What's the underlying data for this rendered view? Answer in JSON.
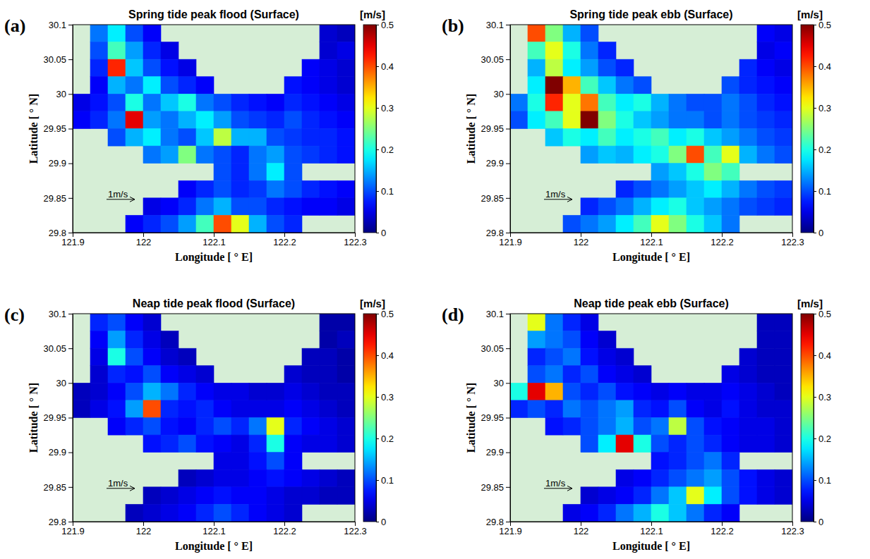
{
  "chart_data": [
    {
      "type": "heatmap",
      "label": "(a)",
      "title": "Spring tide peak flood (Surface)",
      "x_label": "Longitude [ ° E]",
      "y_label": "Latitude [ ° N]",
      "xlim": [
        121.9,
        122.3
      ],
      "ylim": [
        29.8,
        30.1
      ],
      "xticks": [
        121.9,
        122,
        122.1,
        122.2,
        122.3
      ],
      "yticks": [
        29.8,
        29.85,
        29.9,
        29.95,
        30,
        30.05,
        30.1
      ],
      "x_bins": [
        121.9,
        121.925,
        121.95,
        121.975,
        122,
        122.025,
        122.05,
        122.075,
        122.1,
        122.125,
        122.15,
        122.175,
        122.2,
        122.225,
        122.25,
        122.275,
        122.3
      ],
      "y_bins": [
        30.1,
        30.075,
        30.05,
        30.025,
        30,
        29.975,
        29.95,
        29.925,
        29.9,
        29.875,
        29.85,
        29.825,
        29.8
      ],
      "cells": [
        [
          null,
          0.12,
          0.18,
          0.1,
          0.06,
          null,
          null,
          null,
          null,
          null,
          null,
          null,
          null,
          null,
          0.04,
          0.03
        ],
        [
          null,
          0.1,
          0.22,
          0.14,
          0.08,
          0.05,
          null,
          null,
          null,
          null,
          null,
          null,
          null,
          null,
          0.04,
          0.05
        ],
        [
          null,
          0.08,
          0.42,
          0.16,
          0.1,
          0.07,
          0.05,
          null,
          null,
          null,
          null,
          null,
          null,
          0.06,
          0.05,
          0.04
        ],
        [
          null,
          0.06,
          0.15,
          0.12,
          0.18,
          0.1,
          0.08,
          0.06,
          null,
          null,
          null,
          null,
          0.07,
          0.06,
          0.05,
          0.04
        ],
        [
          0.05,
          0.07,
          0.1,
          0.2,
          0.12,
          0.16,
          0.2,
          0.12,
          0.1,
          0.08,
          0.07,
          0.06,
          0.08,
          0.07,
          0.06,
          0.05
        ],
        [
          0.06,
          0.08,
          0.12,
          0.45,
          0.14,
          0.12,
          0.15,
          0.18,
          0.14,
          0.1,
          0.09,
          0.08,
          0.1,
          0.08,
          0.07,
          0.06
        ],
        [
          null,
          null,
          0.1,
          0.15,
          0.18,
          0.12,
          0.1,
          0.16,
          0.28,
          0.15,
          0.15,
          0.1,
          0.09,
          0.08,
          0.08,
          0.07
        ],
        [
          null,
          null,
          null,
          null,
          0.12,
          0.14,
          0.25,
          0.12,
          0.1,
          0.08,
          0.12,
          0.14,
          0.1,
          0.09,
          0.08,
          0.07
        ],
        [
          null,
          null,
          null,
          null,
          null,
          null,
          null,
          null,
          0.1,
          0.08,
          0.12,
          0.18,
          0.1,
          null,
          null,
          null
        ],
        [
          null,
          null,
          null,
          null,
          null,
          null,
          0.06,
          0.08,
          0.1,
          0.08,
          0.09,
          0.12,
          0.1,
          0.08,
          0.07,
          0.06
        ],
        [
          null,
          null,
          null,
          null,
          0.05,
          0.06,
          0.08,
          0.12,
          0.15,
          0.1,
          0.1,
          0.08,
          0.07,
          0.06,
          0.06,
          0.05
        ],
        [
          null,
          null,
          null,
          0.06,
          0.08,
          0.1,
          0.14,
          0.22,
          0.4,
          0.3,
          0.15,
          0.1,
          0.08,
          null,
          null,
          null
        ]
      ],
      "colorbar": {
        "label": "[m/s]",
        "range": [
          0,
          0.5
        ],
        "ticks": [
          0,
          0.1,
          0.2,
          0.3,
          0.4,
          0.5
        ]
      },
      "scale_label": "1m/s"
    },
    {
      "type": "heatmap",
      "label": "(b)",
      "title": "Spring tide peak ebb (Surface)",
      "x_label": "Longitude [ ° E]",
      "y_label": "Latitude [ ° N]",
      "xlim": [
        121.9,
        122.3
      ],
      "ylim": [
        29.8,
        30.1
      ],
      "xticks": [
        121.9,
        122,
        122.1,
        122.2,
        122.3
      ],
      "yticks": [
        29.8,
        29.85,
        29.9,
        29.95,
        30,
        30.05,
        30.1
      ],
      "x_bins": [
        121.9,
        121.925,
        121.95,
        121.975,
        122,
        122.025,
        122.05,
        122.075,
        122.1,
        122.125,
        122.15,
        122.175,
        122.2,
        122.225,
        122.25,
        122.275,
        122.3
      ],
      "y_bins": [
        30.1,
        30.075,
        30.05,
        30.025,
        30,
        29.975,
        29.95,
        29.925,
        29.9,
        29.875,
        29.85,
        29.825,
        29.8
      ],
      "cells": [
        [
          null,
          0.4,
          0.25,
          0.15,
          0.1,
          null,
          null,
          null,
          null,
          null,
          null,
          null,
          null,
          null,
          0.06,
          0.05
        ],
        [
          null,
          0.22,
          0.3,
          0.2,
          0.12,
          0.08,
          null,
          null,
          null,
          null,
          null,
          null,
          null,
          null,
          0.05,
          0.06
        ],
        [
          null,
          0.15,
          0.28,
          0.18,
          0.14,
          0.1,
          0.08,
          null,
          null,
          null,
          null,
          null,
          null,
          0.08,
          0.06,
          0.05
        ],
        [
          null,
          0.18,
          0.5,
          0.35,
          0.22,
          0.16,
          0.12,
          0.1,
          null,
          null,
          null,
          null,
          0.1,
          0.08,
          0.07,
          0.06
        ],
        [
          0.12,
          0.2,
          0.42,
          0.3,
          0.38,
          0.22,
          0.18,
          0.2,
          0.15,
          0.12,
          0.1,
          0.1,
          0.12,
          0.1,
          0.08,
          0.07
        ],
        [
          0.1,
          0.18,
          0.22,
          0.3,
          0.5,
          0.25,
          0.2,
          0.16,
          0.14,
          0.12,
          0.12,
          0.1,
          0.12,
          0.1,
          0.09,
          0.08
        ],
        [
          null,
          null,
          0.16,
          0.2,
          0.18,
          0.22,
          0.18,
          0.2,
          0.22,
          0.18,
          0.2,
          0.16,
          0.14,
          0.12,
          0.1,
          0.09
        ],
        [
          null,
          null,
          null,
          null,
          0.14,
          0.16,
          0.15,
          0.18,
          0.2,
          0.25,
          0.4,
          0.22,
          0.3,
          0.15,
          0.12,
          0.1
        ],
        [
          null,
          null,
          null,
          null,
          null,
          null,
          null,
          null,
          0.14,
          0.16,
          0.2,
          0.25,
          0.22,
          null,
          null,
          null
        ],
        [
          null,
          null,
          null,
          null,
          null,
          null,
          0.08,
          0.1,
          0.12,
          0.14,
          0.16,
          0.18,
          0.15,
          0.12,
          0.1,
          0.09
        ],
        [
          null,
          null,
          null,
          null,
          0.08,
          0.1,
          0.12,
          0.15,
          0.18,
          0.2,
          0.16,
          0.14,
          0.12,
          0.1,
          0.09,
          0.08
        ],
        [
          null,
          null,
          null,
          0.1,
          0.12,
          0.14,
          0.18,
          0.22,
          0.3,
          0.25,
          0.2,
          0.16,
          0.12,
          null,
          null,
          null
        ]
      ],
      "colorbar": {
        "label": "[m/s]",
        "range": [
          0,
          0.5
        ],
        "ticks": [
          0,
          0.1,
          0.2,
          0.3,
          0.4,
          0.5
        ]
      },
      "scale_label": "1m/s"
    },
    {
      "type": "heatmap",
      "label": "(c)",
      "title": "Neap tide peak flood (Surface)",
      "x_label": "Longitude [ ° E]",
      "y_label": "Latitude [ ° N]",
      "xlim": [
        121.9,
        122.3
      ],
      "ylim": [
        29.8,
        30.1
      ],
      "xticks": [
        121.9,
        122,
        122.1,
        122.2,
        122.3
      ],
      "yticks": [
        29.8,
        29.85,
        29.9,
        29.95,
        30,
        30.05,
        30.1
      ],
      "x_bins": [
        121.9,
        121.925,
        121.95,
        121.975,
        122,
        122.025,
        122.05,
        122.075,
        122.1,
        122.125,
        122.15,
        122.175,
        122.2,
        122.225,
        122.25,
        122.275,
        122.3
      ],
      "y_bins": [
        30.1,
        30.075,
        30.05,
        30.025,
        30,
        29.975,
        29.95,
        29.925,
        29.9,
        29.875,
        29.85,
        29.825,
        29.8
      ],
      "cells": [
        [
          null,
          0.08,
          0.1,
          0.06,
          0.04,
          null,
          null,
          null,
          null,
          null,
          null,
          null,
          null,
          null,
          0.02,
          0.02
        ],
        [
          null,
          0.06,
          0.14,
          0.08,
          0.05,
          0.03,
          null,
          null,
          null,
          null,
          null,
          null,
          null,
          null,
          0.02,
          0.03
        ],
        [
          null,
          0.05,
          0.2,
          0.1,
          0.06,
          0.04,
          0.03,
          null,
          null,
          null,
          null,
          null,
          null,
          0.03,
          0.03,
          0.02
        ],
        [
          null,
          0.04,
          0.08,
          0.07,
          0.1,
          0.06,
          0.05,
          0.04,
          null,
          null,
          null,
          null,
          0.04,
          0.03,
          0.03,
          0.02
        ],
        [
          0.03,
          0.04,
          0.06,
          0.1,
          0.15,
          0.12,
          0.08,
          0.06,
          0.05,
          0.05,
          0.04,
          0.04,
          0.05,
          0.04,
          0.03,
          0.03
        ],
        [
          0.03,
          0.05,
          0.07,
          0.14,
          0.4,
          0.08,
          0.07,
          0.08,
          0.06,
          0.05,
          0.05,
          0.05,
          0.06,
          0.05,
          0.04,
          0.03
        ],
        [
          null,
          null,
          0.06,
          0.08,
          0.1,
          0.07,
          0.06,
          0.08,
          0.1,
          0.08,
          0.12,
          0.3,
          0.08,
          0.06,
          0.05,
          0.04
        ],
        [
          null,
          null,
          null,
          null,
          0.07,
          0.08,
          0.1,
          0.07,
          0.06,
          0.05,
          0.08,
          0.2,
          0.06,
          0.05,
          0.05,
          0.04
        ],
        [
          null,
          null,
          null,
          null,
          null,
          null,
          null,
          null,
          0.05,
          0.05,
          0.07,
          0.1,
          0.06,
          null,
          null,
          null
        ],
        [
          null,
          null,
          null,
          null,
          null,
          null,
          0.03,
          0.04,
          0.05,
          0.05,
          0.06,
          0.07,
          0.06,
          0.05,
          0.04,
          0.03
        ],
        [
          null,
          null,
          null,
          null,
          0.03,
          0.04,
          0.05,
          0.06,
          0.07,
          0.06,
          0.06,
          0.05,
          0.04,
          0.04,
          0.03,
          0.03
        ],
        [
          null,
          null,
          null,
          0.03,
          0.04,
          0.05,
          0.06,
          0.08,
          0.1,
          0.08,
          0.06,
          0.05,
          0.04,
          null,
          null,
          null
        ]
      ],
      "colorbar": {
        "label": "[m/s]",
        "range": [
          0,
          0.5
        ],
        "ticks": [
          0,
          0.1,
          0.2,
          0.3,
          0.4,
          0.5
        ]
      },
      "scale_label": "1m/s"
    },
    {
      "type": "heatmap",
      "label": "(d)",
      "title": "Neap tide peak ebb (Surface)",
      "x_label": "Longitude [ ° E]",
      "y_label": "Latitude [ ° N]",
      "xlim": [
        121.9,
        122.3
      ],
      "ylim": [
        29.8,
        30.1
      ],
      "xticks": [
        121.9,
        122,
        122.1,
        122.2,
        122.3
      ],
      "yticks": [
        29.8,
        29.85,
        29.9,
        29.95,
        30,
        30.05,
        30.1
      ],
      "x_bins": [
        121.9,
        121.925,
        121.95,
        121.975,
        122,
        122.025,
        122.05,
        122.075,
        122.1,
        122.125,
        122.15,
        122.175,
        122.2,
        122.225,
        122.25,
        122.275,
        122.3
      ],
      "y_bins": [
        30.1,
        30.075,
        30.05,
        30.025,
        30,
        29.975,
        29.95,
        29.925,
        29.9,
        29.875,
        29.85,
        29.825,
        29.8
      ],
      "cells": [
        [
          null,
          0.3,
          0.12,
          0.08,
          0.05,
          null,
          null,
          null,
          null,
          null,
          null,
          null,
          null,
          null,
          0.03,
          0.03
        ],
        [
          null,
          0.14,
          0.12,
          0.1,
          0.06,
          0.04,
          null,
          null,
          null,
          null,
          null,
          null,
          null,
          null,
          0.03,
          0.03
        ],
        [
          null,
          0.08,
          0.1,
          0.12,
          0.07,
          0.05,
          0.04,
          null,
          null,
          null,
          null,
          null,
          null,
          0.04,
          0.03,
          0.03
        ],
        [
          null,
          0.1,
          0.12,
          0.08,
          0.1,
          0.06,
          0.05,
          0.04,
          null,
          null,
          null,
          null,
          0.05,
          0.04,
          0.03,
          0.03
        ],
        [
          0.2,
          0.45,
          0.35,
          0.1,
          0.08,
          0.1,
          0.07,
          0.06,
          0.05,
          0.06,
          0.05,
          0.05,
          0.06,
          0.05,
          0.04,
          0.03
        ],
        [
          0.08,
          0.1,
          0.08,
          0.12,
          0.1,
          0.12,
          0.14,
          0.08,
          0.07,
          0.1,
          0.06,
          0.05,
          0.07,
          0.05,
          0.04,
          0.04
        ],
        [
          null,
          null,
          0.07,
          0.08,
          0.1,
          0.12,
          0.15,
          0.1,
          0.12,
          0.28,
          0.1,
          0.07,
          0.06,
          0.05,
          0.05,
          0.04
        ],
        [
          null,
          null,
          null,
          null,
          0.1,
          0.18,
          0.45,
          0.2,
          0.1,
          0.08,
          0.1,
          0.08,
          0.06,
          0.05,
          0.05,
          0.04
        ],
        [
          null,
          null,
          null,
          null,
          null,
          null,
          null,
          null,
          0.07,
          0.08,
          0.1,
          0.12,
          0.08,
          null,
          null,
          null
        ],
        [
          null,
          null,
          null,
          null,
          null,
          null,
          0.05,
          0.06,
          0.08,
          0.1,
          0.12,
          0.14,
          0.1,
          0.07,
          0.05,
          0.04
        ],
        [
          null,
          null,
          null,
          null,
          0.04,
          0.05,
          0.06,
          0.08,
          0.12,
          0.16,
          0.3,
          0.18,
          0.1,
          0.07,
          0.05,
          0.04
        ],
        [
          null,
          null,
          null,
          0.05,
          0.06,
          0.08,
          0.12,
          0.15,
          0.2,
          0.16,
          0.12,
          0.08,
          0.06,
          null,
          null,
          null
        ]
      ],
      "colorbar": {
        "label": "[m/s]",
        "range": [
          0,
          0.5
        ],
        "ticks": [
          0,
          0.1,
          0.2,
          0.3,
          0.4,
          0.5
        ]
      },
      "scale_label": "1m/s"
    }
  ]
}
